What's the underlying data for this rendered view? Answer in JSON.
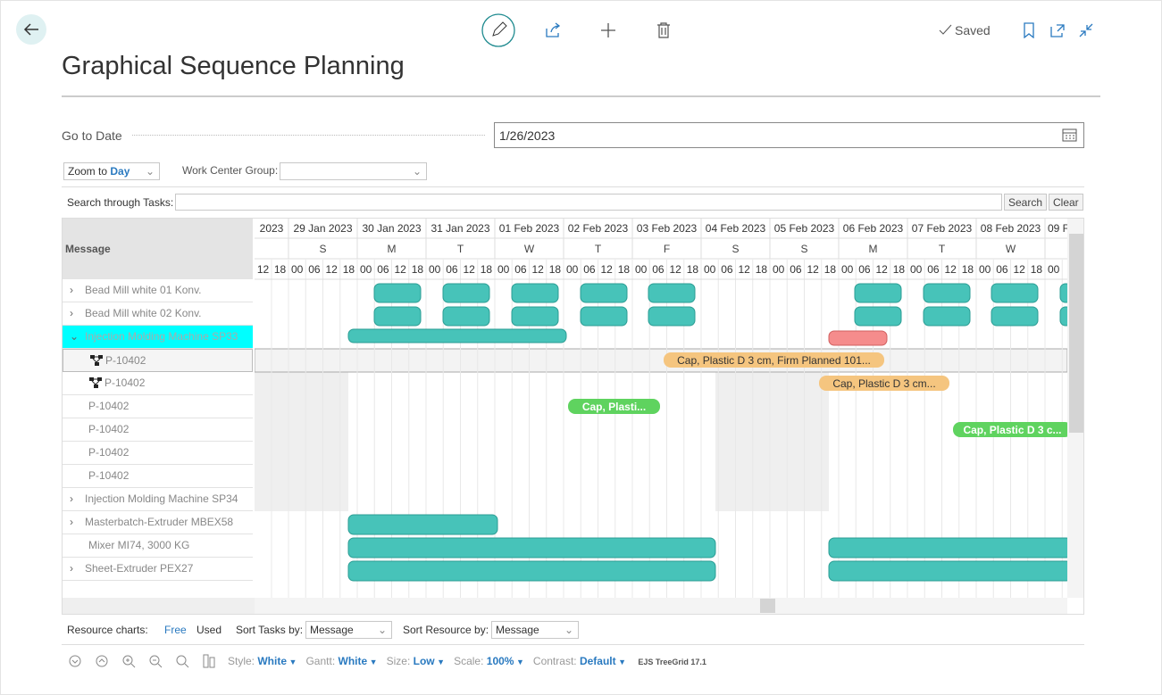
{
  "header": {
    "title": "Graphical Sequence Planning",
    "status": "Saved"
  },
  "go_to_date": {
    "label": "Go to Date",
    "value": "1/26/2023"
  },
  "filters": {
    "zoom_label": "Zoom to",
    "zoom_value": "Day",
    "work_center_group_label": "Work Center Group:"
  },
  "search": {
    "label": "Search through Tasks:",
    "search_button": "Search",
    "clear_button": "Clear"
  },
  "grid": {
    "column_header": "Message",
    "days": [
      {
        "date": "2023",
        "weekday": "S"
      },
      {
        "date": "29 Jan 2023",
        "weekday": "S"
      },
      {
        "date": "30 Jan 2023",
        "weekday": "M"
      },
      {
        "date": "31 Jan 2023",
        "weekday": "T"
      },
      {
        "date": "01 Feb 2023",
        "weekday": "W"
      },
      {
        "date": "02 Feb 2023",
        "weekday": "T"
      },
      {
        "date": "03 Feb 2023",
        "weekday": "F"
      },
      {
        "date": "04 Feb 2023",
        "weekday": "S"
      },
      {
        "date": "05 Feb 2023",
        "weekday": "S"
      },
      {
        "date": "06 Feb 2023",
        "weekday": "M"
      },
      {
        "date": "07 Feb 2023",
        "weekday": "T"
      },
      {
        "date": "08 Feb 2023",
        "weekday": "W"
      },
      {
        "date": "09 F"
      }
    ],
    "hours": [
      "00",
      "06",
      "12",
      "18"
    ],
    "rows": [
      "Bead Mill white 01 Konv.",
      "Bead Mill white 02 Konv.",
      "Injection Molding Machine SP33",
      "P-10402",
      "P-10402",
      "P-10402",
      "P-10402",
      "P-10402",
      "P-10402",
      "Injection Molding Machine SP34",
      "Masterbatch-Extruder MBEX58",
      "Mixer MI74, 3000 KG",
      "Sheet-Extruder PEX27"
    ],
    "tasks": [
      "Cap, Plastic D 3 cm, Firm Planned 101...",
      "Cap, Plastic D 3 cm...",
      "Cap, Plasti...",
      "Cap, Plastic D 3 c..."
    ]
  },
  "footer": {
    "resource_charts_label": "Resource charts:",
    "free": "Free",
    "used": "Used",
    "sort_tasks_label": "Sort Tasks by:",
    "sort_tasks_value": "Message",
    "sort_resource_label": "Sort Resource by:",
    "sort_resource_value": "Message"
  },
  "status_bar": {
    "style_label": "Style:",
    "style_value": "White",
    "gantt_label": "Gantt:",
    "gantt_value": "White",
    "size_label": "Size:",
    "size_value": "Low",
    "scale_label": "Scale:",
    "scale_value": "100%",
    "contrast_label": "Contrast:",
    "contrast_value": "Default",
    "version": "EJS TreeGrid 17.1"
  }
}
